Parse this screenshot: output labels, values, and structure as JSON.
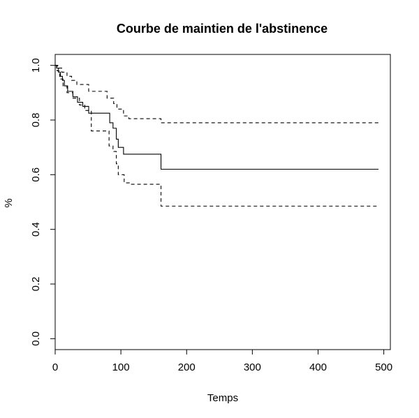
{
  "chart_data": {
    "type": "line",
    "title": "Courbe de maintien de l'abstinence",
    "xlabel": "Temps",
    "ylabel": "%",
    "xlim": [
      0,
      510
    ],
    "ylim": [
      -0.04,
      1.04
    ],
    "xticks": [
      0,
      100,
      200,
      300,
      400,
      500
    ],
    "yticks": [
      0.0,
      0.2,
      0.4,
      0.6,
      0.8,
      1.0
    ],
    "xtick_labels": [
      "0",
      "100",
      "200",
      "300",
      "400",
      "500"
    ],
    "ytick_labels": [
      "0.0",
      "0.2",
      "0.4",
      "0.6",
      "0.8",
      "1.0"
    ],
    "grid": false,
    "step": true,
    "series": [
      {
        "style": "solid",
        "x": [
          0,
          2,
          5,
          8,
          11,
          14,
          19,
          27,
          34,
          42,
          51,
          83,
          88,
          93,
          96,
          104,
          112,
          161,
          492
        ],
        "y": [
          1.0,
          0.99,
          0.975,
          0.96,
          0.945,
          0.925,
          0.905,
          0.885,
          0.865,
          0.85,
          0.825,
          0.79,
          0.77,
          0.73,
          0.7,
          0.675,
          0.675,
          0.62,
          0.62
        ]
      },
      {
        "style": "dashed",
        "x": [
          0,
          4,
          10,
          18,
          25,
          33,
          51,
          79,
          89,
          94,
          104,
          112,
          161,
          492
        ],
        "y": [
          1.0,
          0.99,
          0.975,
          0.96,
          0.945,
          0.93,
          0.905,
          0.88,
          0.86,
          0.84,
          0.815,
          0.805,
          0.79,
          0.79
        ]
      },
      {
        "style": "dashed",
        "x": [
          0,
          3,
          7,
          12,
          18,
          27,
          37,
          45,
          55,
          82,
          88,
          93,
          96,
          105,
          113,
          161,
          492
        ],
        "y": [
          1.0,
          0.98,
          0.95,
          0.925,
          0.9,
          0.88,
          0.855,
          0.835,
          0.76,
          0.705,
          0.685,
          0.64,
          0.6,
          0.57,
          0.565,
          0.485,
          0.485
        ]
      }
    ]
  }
}
